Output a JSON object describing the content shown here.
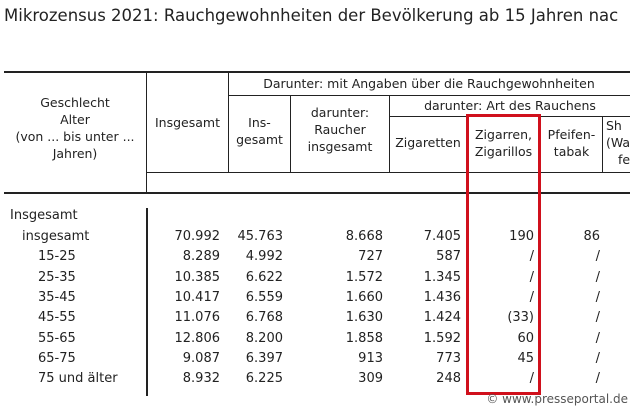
{
  "title": "Mikrozensus 2021: Rauchgewohnheiten der Bevölkerung ab 15 Jahren nac",
  "header": {
    "stub": [
      "Geschlecht",
      "Alter",
      "(von ... bis unter ...",
      "Jahren)"
    ],
    "insgesamt": "Insgesamt",
    "group": "Darunter: mit Angaben über die Rauchgewohnheiten",
    "ins_gesamt": [
      "Ins-",
      "gesamt"
    ],
    "raucher": [
      "darunter:",
      "Raucher",
      "insgesamt"
    ],
    "art": "darunter: Art des Rauchens",
    "zigaretten": "Zigaretten",
    "zigarren": [
      "Zigarren,",
      "Zigarillos"
    ],
    "pfeife": [
      "Pfeifen-",
      "tabak"
    ],
    "shisha": [
      "Sh",
      "(Wa",
      "fe"
    ]
  },
  "section": "Insgesamt",
  "rows": [
    {
      "label": "insgesamt",
      "v": [
        "70.992",
        "45.763",
        "8.668",
        "7.405",
        "190",
        "86"
      ]
    },
    {
      "label": "15-25",
      "v": [
        "8.289",
        "4.992",
        "727",
        "587",
        "/",
        "/"
      ]
    },
    {
      "label": "25-35",
      "v": [
        "10.385",
        "6.622",
        "1.572",
        "1.345",
        "/",
        "/"
      ]
    },
    {
      "label": "35-45",
      "v": [
        "10.417",
        "6.559",
        "1.660",
        "1.436",
        "/",
        "/"
      ]
    },
    {
      "label": "45-55",
      "v": [
        "11.076",
        "6.768",
        "1.630",
        "1.424",
        "(33)",
        "/"
      ]
    },
    {
      "label": "55-65",
      "v": [
        "12.806",
        "8.200",
        "1.858",
        "1.592",
        "60",
        "/"
      ]
    },
    {
      "label": "65-75",
      "v": [
        "9.087",
        "6.397",
        "913",
        "773",
        "45",
        "/"
      ]
    },
    {
      "label": "75 und älter",
      "v": [
        "8.932",
        "6.225",
        "309",
        "248",
        "/",
        "/"
      ]
    }
  ],
  "highlight_color": "#d0101c",
  "watermark": "© www.presseportal.de"
}
